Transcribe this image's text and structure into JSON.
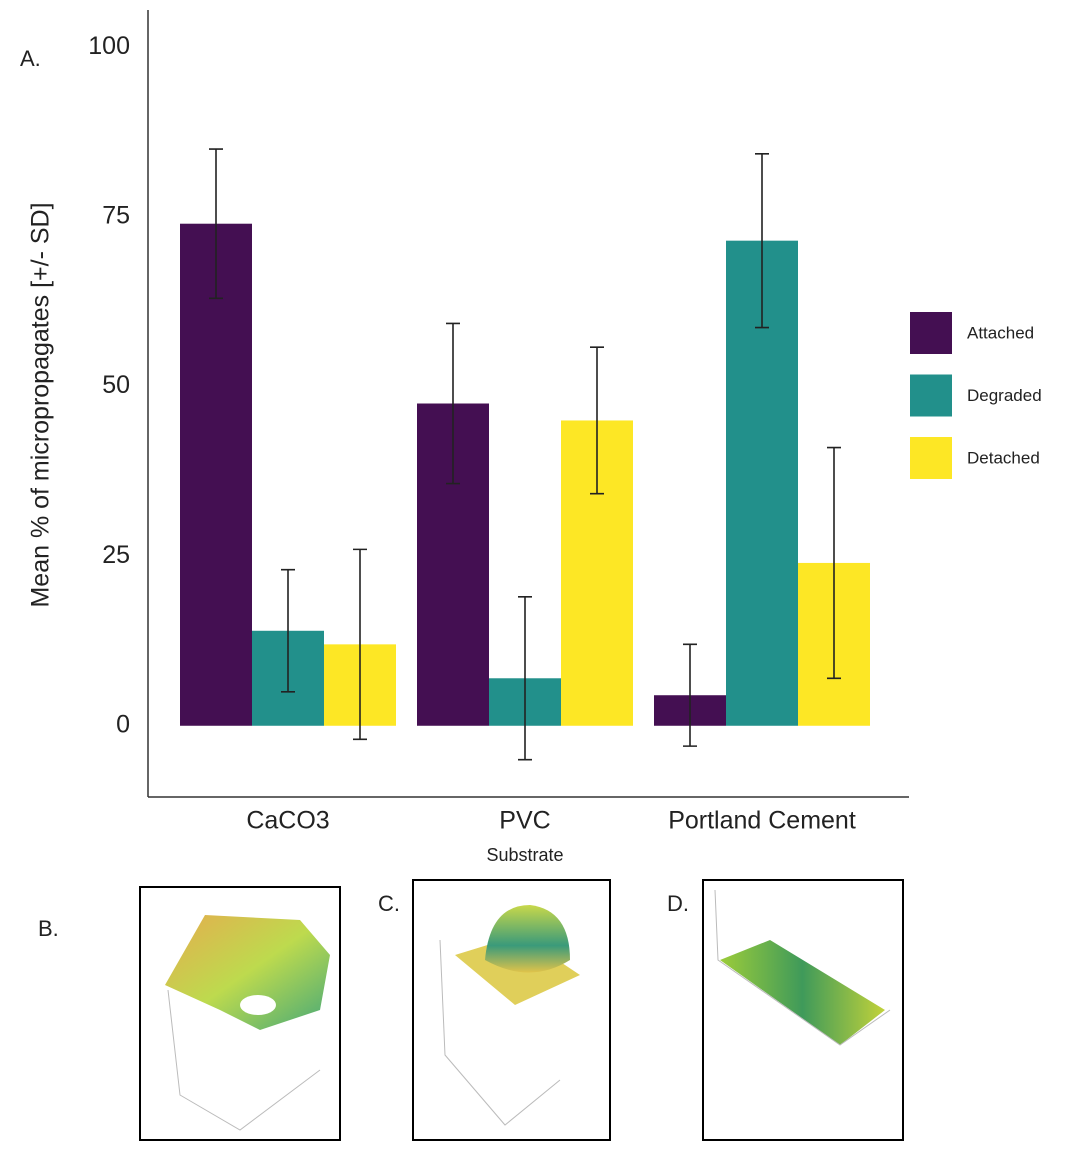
{
  "chart_data": {
    "type": "bar",
    "panel_label": "A.",
    "x_label": "Substrate",
    "y_label": "Mean % of micropropagates [+/- SD]",
    "categories": [
      "CaCO3",
      "PVC",
      "Portland Cement"
    ],
    "series": [
      {
        "name": "Attached",
        "color": "#440f52",
        "values": [
          74,
          47.5,
          4.5
        ],
        "errors": [
          11,
          11.8,
          7.5
        ]
      },
      {
        "name": "Degraded",
        "color": "#22908b",
        "values": [
          14,
          7,
          71.5
        ],
        "errors": [
          9,
          12,
          12.8
        ]
      },
      {
        "name": "Detached",
        "color": "#fde725",
        "values": [
          12,
          45,
          24
        ],
        "errors": [
          14,
          10.8,
          17
        ]
      }
    ],
    "ylim": [
      -10.5,
      105.5
    ],
    "yticks": [
      0,
      25,
      50,
      75,
      100
    ],
    "grid": false,
    "legend": "right"
  },
  "panels": [
    {
      "label": "B."
    },
    {
      "label": "C."
    },
    {
      "label": "D."
    }
  ]
}
